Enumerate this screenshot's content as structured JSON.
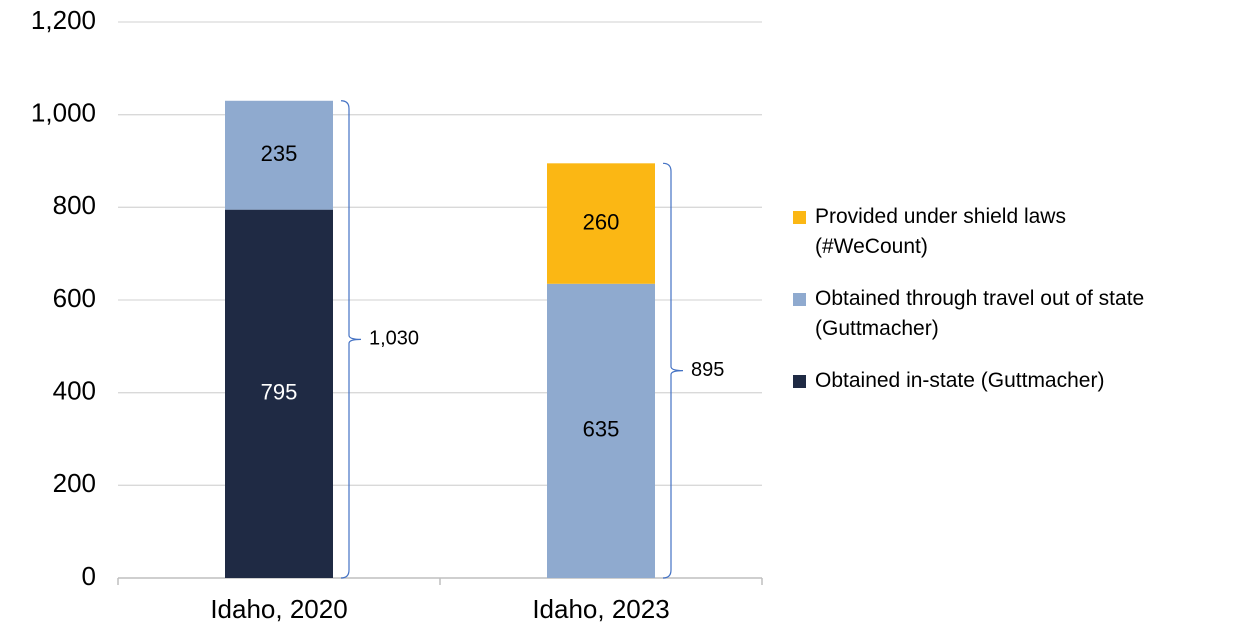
{
  "chart_data": {
    "type": "stacked_bar",
    "categories": [
      "Idaho, 2020",
      "Idaho, 2023"
    ],
    "series": [
      {
        "name": "Obtained in-state (Guttmacher)",
        "color": "#1f2a44",
        "label_color": "#ffffff",
        "values": [
          795,
          null
        ]
      },
      {
        "name": "Obtained through travel out of state\n(Guttmacher)",
        "color": "#8faacf",
        "label_color": "#000000",
        "values": [
          235,
          635
        ]
      },
      {
        "name": "Provided under shield laws\n(#WeCount)",
        "color": "#fbb714",
        "label_color": "#000000",
        "values": [
          null,
          260
        ]
      }
    ],
    "totals": [
      1030,
      895
    ],
    "total_labels": [
      "1,030",
      "895"
    ],
    "ylim": [
      0,
      1200
    ],
    "yticks": [
      0,
      200,
      400,
      600,
      800,
      {
        "value": 1000,
        "label": "1,000"
      },
      {
        "value": 1200,
        "label": "1,200"
      }
    ],
    "grid": true,
    "legend": "right"
  }
}
